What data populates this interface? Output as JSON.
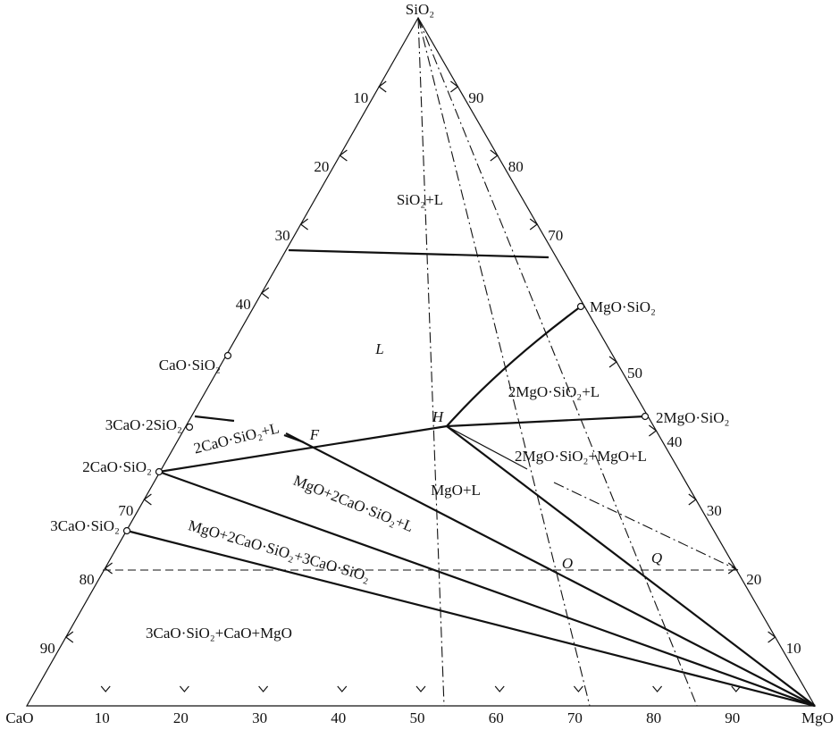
{
  "vertices": {
    "top": "SiO₂",
    "left": "CaO",
    "right": "MgO"
  },
  "left_ticks": [
    10,
    20,
    30,
    40,
    70,
    80,
    90
  ],
  "right_ticks": [
    90,
    80,
    70,
    50,
    40,
    30,
    20,
    10
  ],
  "bottom_ticks": [
    10,
    20,
    30,
    40,
    50,
    60,
    70,
    80,
    90
  ],
  "compounds": [
    "CaO·SiO₂",
    "3CaO·2SiO₂",
    "2CaO·SiO₂",
    "3CaO·SiO₂",
    "MgO·SiO₂",
    "2MgO·SiO₂"
  ],
  "regions": [
    "SiO₂+L",
    "L",
    "2MgO·SiO₂+L",
    "2MgO·SiO₂+MgO+L",
    "MgO+L",
    "2CaO·SiO₂+L",
    "MgO+2CaO·SiO₂+L",
    "MgO+2CaO·SiO₂+3CaO·SiO₂",
    "3CaO·SiO₂+CaO+MgO"
  ],
  "points": [
    "H",
    "F",
    "O",
    "Q"
  ]
}
